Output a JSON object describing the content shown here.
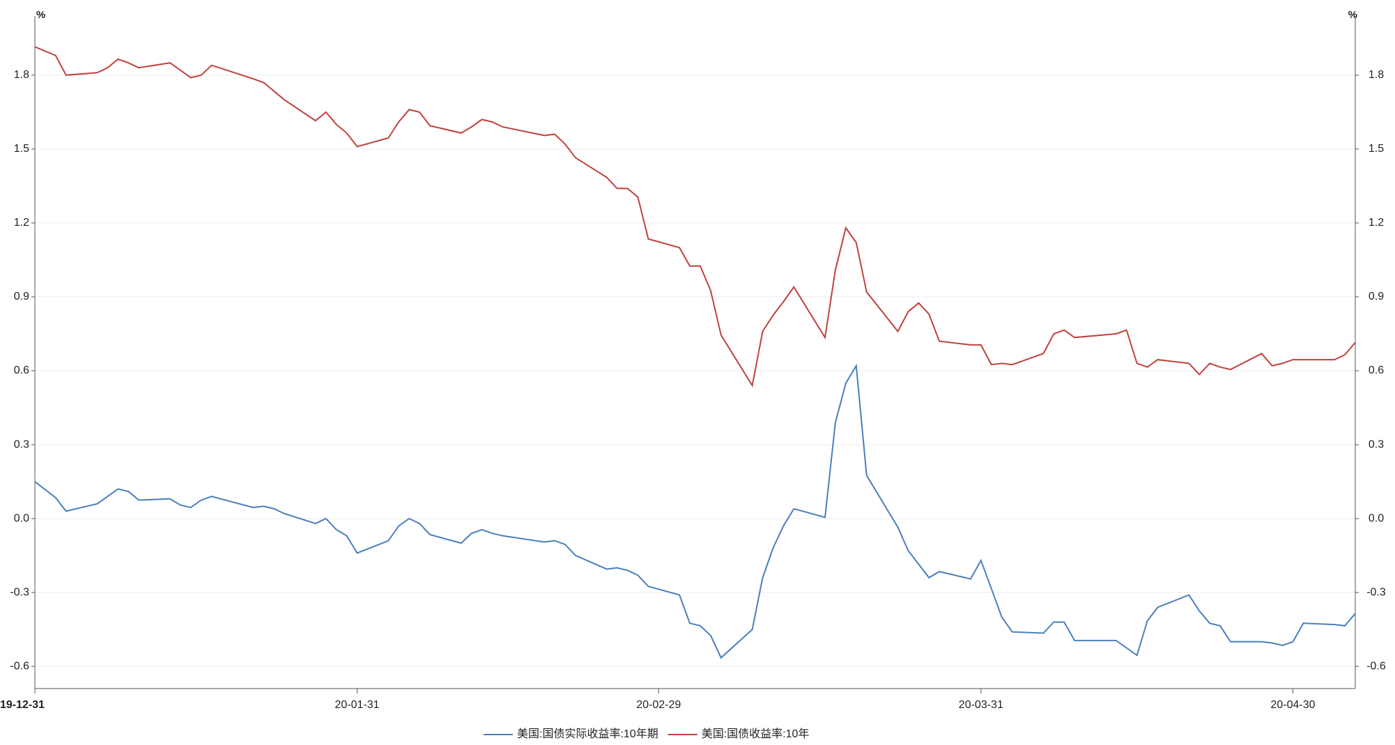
{
  "chart_data": {
    "type": "line",
    "y_unit": "%",
    "y2_unit": "%",
    "x": [
      "19-12-31",
      "20-01-02",
      "20-01-03",
      "20-01-06",
      "20-01-07",
      "20-01-08",
      "20-01-09",
      "20-01-10",
      "20-01-13",
      "20-01-14",
      "20-01-15",
      "20-01-16",
      "20-01-17",
      "20-01-21",
      "20-01-22",
      "20-01-23",
      "20-01-24",
      "20-01-27",
      "20-01-28",
      "20-01-29",
      "20-01-30",
      "20-01-31",
      "20-02-03",
      "20-02-04",
      "20-02-05",
      "20-02-06",
      "20-02-07",
      "20-02-10",
      "20-02-11",
      "20-02-12",
      "20-02-13",
      "20-02-14",
      "20-02-18",
      "20-02-19",
      "20-02-20",
      "20-02-21",
      "20-02-24",
      "20-02-25",
      "20-02-26",
      "20-02-27",
      "20-02-28",
      "20-03-02",
      "20-03-03",
      "20-03-04",
      "20-03-05",
      "20-03-06",
      "20-03-09",
      "20-03-10",
      "20-03-11",
      "20-03-12",
      "20-03-13",
      "20-03-16",
      "20-03-17",
      "20-03-18",
      "20-03-19",
      "20-03-20",
      "20-03-23",
      "20-03-24",
      "20-03-25",
      "20-03-26",
      "20-03-27",
      "20-03-30",
      "20-03-31",
      "20-04-01",
      "20-04-02",
      "20-04-03",
      "20-04-06",
      "20-04-07",
      "20-04-08",
      "20-04-09",
      "20-04-13",
      "20-04-14",
      "20-04-15",
      "20-04-16",
      "20-04-17",
      "20-04-20",
      "20-04-21",
      "20-04-22",
      "20-04-23",
      "20-04-24",
      "20-04-27",
      "20-04-28",
      "20-04-29",
      "20-04-30",
      "20-05-01",
      "20-05-04",
      "20-05-05",
      "20-05-06"
    ],
    "series": [
      {
        "name": "美国:国债实际收益率:10年期",
        "color": "#4a7ebb",
        "values": [
          0.15,
          0.085,
          0.03,
          0.06,
          0.09,
          0.12,
          0.11,
          0.075,
          0.08,
          0.055,
          0.045,
          0.075,
          0.09,
          0.045,
          0.05,
          0.04,
          0.02,
          -0.02,
          0.0,
          -0.045,
          -0.07,
          -0.14,
          -0.09,
          -0.03,
          0.0,
          -0.02,
          -0.065,
          -0.1,
          -0.06,
          -0.045,
          -0.06,
          -0.07,
          -0.095,
          -0.09,
          -0.105,
          -0.15,
          -0.205,
          -0.2,
          -0.21,
          -0.23,
          -0.275,
          -0.31,
          -0.425,
          -0.435,
          -0.475,
          -0.565,
          -0.45,
          -0.24,
          -0.12,
          -0.03,
          0.04,
          0.005,
          0.39,
          0.55,
          0.62,
          0.175,
          -0.035,
          -0.13,
          -0.185,
          -0.24,
          -0.215,
          -0.245,
          -0.17,
          -0.285,
          -0.4,
          -0.46,
          -0.465,
          -0.42,
          -0.42,
          -0.495,
          -0.495,
          -0.525,
          -0.555,
          -0.415,
          -0.36,
          -0.31,
          -0.375,
          -0.425,
          -0.435,
          -0.5,
          -0.5,
          -0.505,
          -0.515,
          -0.5,
          -0.425,
          -0.43,
          -0.435,
          -0.385
        ]
      },
      {
        "name": "美国:国债收益率:10年",
        "color": "#c0403d",
        "axis": "y2",
        "values": [
          1.915,
          1.88,
          1.8,
          1.81,
          1.83,
          1.865,
          1.85,
          1.83,
          1.85,
          1.82,
          1.79,
          1.8,
          1.84,
          1.785,
          1.77,
          1.735,
          1.7,
          1.615,
          1.65,
          1.6,
          1.565,
          1.51,
          1.545,
          1.61,
          1.66,
          1.65,
          1.595,
          1.565,
          1.59,
          1.62,
          1.61,
          1.59,
          1.555,
          1.56,
          1.52,
          1.465,
          1.385,
          1.34,
          1.34,
          1.305,
          1.135,
          1.1,
          1.025,
          1.025,
          0.925,
          0.745,
          0.54,
          0.76,
          0.825,
          0.88,
          0.94,
          0.735,
          1.01,
          1.18,
          1.12,
          0.92,
          0.76,
          0.84,
          0.875,
          0.83,
          0.72,
          0.705,
          0.705,
          0.625,
          0.63,
          0.625,
          0.67,
          0.75,
          0.765,
          0.735,
          0.75,
          0.765,
          0.63,
          0.615,
          0.645,
          0.63,
          0.585,
          0.63,
          0.615,
          0.605,
          0.67,
          0.62,
          0.63,
          0.645,
          0.645,
          0.645,
          0.665,
          0.715
        ]
      }
    ],
    "xlim": [
      "19-12-31",
      "20-05-06"
    ],
    "xticks": [
      "19-12-31",
      "20-01-31",
      "20-02-29",
      "20-03-31",
      "20-04-30"
    ],
    "ylim": [
      -0.69,
      2.04
    ],
    "yticks": [
      -0.6,
      -0.3,
      {
        "value": 0,
        "label": "0.0"
      },
      0.3,
      0.6,
      0.9,
      1.2,
      1.5,
      1.8
    ],
    "y2lim": [
      -0.69,
      2.04
    ],
    "y2ticks": [
      -0.6,
      -0.3,
      {
        "value": 0,
        "label": "0.0"
      },
      0.3,
      0.6,
      0.9,
      1.2,
      1.5,
      1.8
    ],
    "grid": true
  }
}
